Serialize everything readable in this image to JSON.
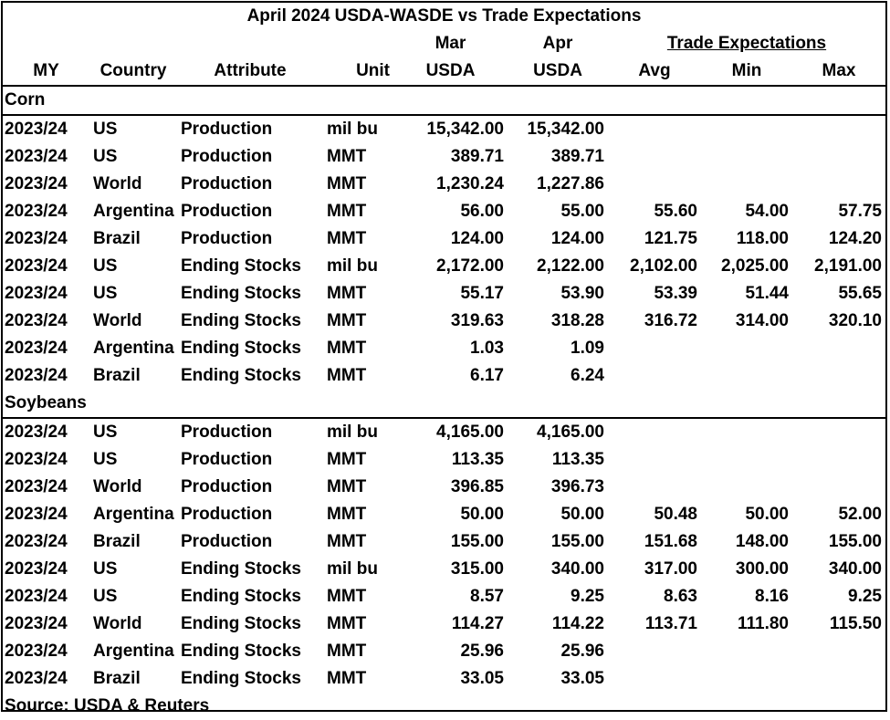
{
  "header": {
    "title": "April 2024 USDA-WASDE vs Trade Expectations",
    "groups": [
      "Mar",
      "Apr",
      "Trade Expectations"
    ],
    "columns": [
      "MY",
      "Country",
      "Attribute",
      "Unit",
      "USDA",
      "USDA",
      "Avg",
      "Min",
      "Max"
    ]
  },
  "sections": [
    {
      "name": "Corn",
      "rows": [
        {
          "my": "2023/24",
          "country": "US",
          "attribute": "Production",
          "unit": "mil bu",
          "mar": "15,342.00",
          "apr": "15,342.00"
        },
        {
          "my": "2023/24",
          "country": "US",
          "attribute": "Production",
          "unit": "MMT",
          "mar": "389.71",
          "apr": "389.71"
        },
        {
          "my": "2023/24",
          "country": "World",
          "attribute": "Production",
          "unit": "MMT",
          "mar": "1,230.24",
          "apr": "1,227.86"
        },
        {
          "my": "2023/24",
          "country": "Argentina",
          "attribute": "Production",
          "unit": "MMT",
          "mar": "56.00",
          "apr": "55.00",
          "avg": "55.60",
          "min": "54.00",
          "max": "57.75"
        },
        {
          "my": "2023/24",
          "country": "Brazil",
          "attribute": "Production",
          "unit": "MMT",
          "mar": "124.00",
          "apr": "124.00",
          "avg": "121.75",
          "min": "118.00",
          "max": "124.20"
        },
        {
          "my": "2023/24",
          "country": "US",
          "attribute": "Ending Stocks",
          "unit": "mil bu",
          "mar": "2,172.00",
          "apr": "2,122.00",
          "avg": "2,102.00",
          "min": "2,025.00",
          "max": "2,191.00"
        },
        {
          "my": "2023/24",
          "country": "US",
          "attribute": "Ending Stocks",
          "unit": "MMT",
          "mar": "55.17",
          "apr": "53.90",
          "avg": "53.39",
          "min": "51.44",
          "max": "55.65"
        },
        {
          "my": "2023/24",
          "country": "World",
          "attribute": "Ending Stocks",
          "unit": "MMT",
          "mar": "319.63",
          "apr": "318.28",
          "avg": "316.72",
          "min": "314.00",
          "max": "320.10"
        },
        {
          "my": "2023/24",
          "country": "Argentina",
          "attribute": "Ending Stocks",
          "unit": "MMT",
          "mar": "1.03",
          "apr": "1.09"
        },
        {
          "my": "2023/24",
          "country": "Brazil",
          "attribute": "Ending Stocks",
          "unit": "MMT",
          "mar": "6.17",
          "apr": "6.24"
        }
      ]
    },
    {
      "name": "Soybeans",
      "rows": [
        {
          "my": "2023/24",
          "country": "US",
          "attribute": "Production",
          "unit": "mil bu",
          "mar": "4,165.00",
          "apr": "4,165.00"
        },
        {
          "my": "2023/24",
          "country": "US",
          "attribute": "Production",
          "unit": "MMT",
          "mar": "113.35",
          "apr": "113.35"
        },
        {
          "my": "2023/24",
          "country": "World",
          "attribute": "Production",
          "unit": "MMT",
          "mar": "396.85",
          "apr": "396.73"
        },
        {
          "my": "2023/24",
          "country": "Argentina",
          "attribute": "Production",
          "unit": "MMT",
          "mar": "50.00",
          "apr": "50.00",
          "avg": "50.48",
          "min": "50.00",
          "max": "52.00"
        },
        {
          "my": "2023/24",
          "country": "Brazil",
          "attribute": "Production",
          "unit": "MMT",
          "mar": "155.00",
          "apr": "155.00",
          "avg": "151.68",
          "min": "148.00",
          "max": "155.00"
        },
        {
          "my": "2023/24",
          "country": "US",
          "attribute": "Ending Stocks",
          "unit": "mil bu",
          "mar": "315.00",
          "apr": "340.00",
          "avg": "317.00",
          "min": "300.00",
          "max": "340.00"
        },
        {
          "my": "2023/24",
          "country": "US",
          "attribute": "Ending Stocks",
          "unit": "MMT",
          "mar": "8.57",
          "apr": "9.25",
          "avg": "8.63",
          "min": "8.16",
          "max": "9.25"
        },
        {
          "my": "2023/24",
          "country": "World",
          "attribute": "Ending Stocks",
          "unit": "MMT",
          "mar": "114.27",
          "apr": "114.22",
          "avg": "113.71",
          "min": "111.80",
          "max": "115.50"
        },
        {
          "my": "2023/24",
          "country": "Argentina",
          "attribute": "Ending Stocks",
          "unit": "MMT",
          "mar": "25.96",
          "apr": "25.96"
        },
        {
          "my": "2023/24",
          "country": "Brazil",
          "attribute": "Ending Stocks",
          "unit": "MMT",
          "mar": "33.05",
          "apr": "33.05"
        }
      ]
    }
  ],
  "source": "Source: USDA & Reuters"
}
